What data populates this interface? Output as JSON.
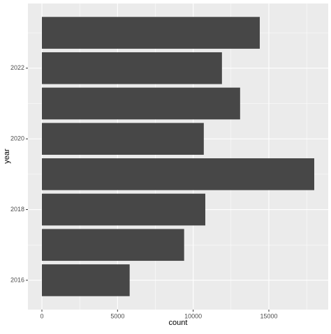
{
  "chart_data": {
    "type": "bar",
    "orientation": "horizontal",
    "x": [
      2016,
      2017,
      2018,
      2019,
      2020,
      2021,
      2022,
      2023
    ],
    "values": [
      5800,
      9400,
      10800,
      18000,
      10700,
      13100,
      11900,
      14400
    ],
    "color": "#474747",
    "x_label": "count",
    "y_label": "year",
    "xlim": [
      -923,
      18923
    ],
    "xticks": [
      0,
      5000,
      10000,
      15000
    ],
    "xminor": [
      2500,
      7500,
      12500,
      17500
    ],
    "ylim": [
      2015.17,
      2023.83
    ],
    "yticks": [
      2016,
      2018,
      2020,
      2022
    ],
    "yminor": [
      2017,
      2019,
      2021,
      2023
    ],
    "bar_width": 0.9,
    "grid": true
  }
}
